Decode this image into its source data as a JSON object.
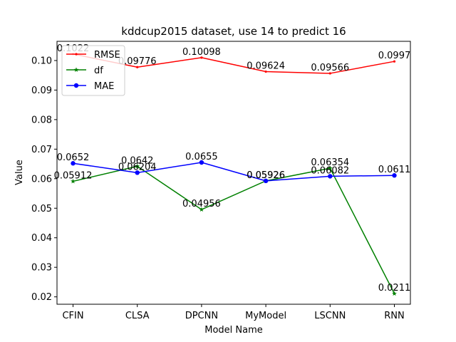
{
  "chart_data": {
    "type": "line",
    "title": "kddcup2015 dataset, use 14 to predict 16",
    "xlabel": "Model Name",
    "ylabel": "Value",
    "categories": [
      "CFIN",
      "CLSA",
      "DPCNN",
      "MyModel",
      "LSCNN",
      "RNN"
    ],
    "ylim": [
      0.0175,
      0.1065
    ],
    "yticks": [
      0.02,
      0.03,
      0.04,
      0.05,
      0.06,
      0.07,
      0.08,
      0.09,
      0.1
    ],
    "ytick_labels": [
      "0.02",
      "0.03",
      "0.04",
      "0.05",
      "0.06",
      "0.07",
      "0.08",
      "0.09",
      "0.10"
    ],
    "grid": false,
    "legend_position": "upper-left",
    "series": [
      {
        "name": "RMSE",
        "color": "#ff0000",
        "marker": "dot",
        "values": [
          0.1022,
          0.09776,
          0.10098,
          0.09624,
          0.09566,
          0.0997
        ],
        "labels": [
          "0.1022",
          "0.09776",
          "0.10098",
          "0.09624",
          "0.09566",
          "0.0997"
        ]
      },
      {
        "name": "df",
        "color": "#008000",
        "marker": "star",
        "values": [
          0.05912,
          0.0642,
          0.04956,
          0.05926,
          0.06354,
          0.0211
        ],
        "labels": [
          "0.05912",
          "0.0642",
          "0.04956",
          "0.05926",
          "0.06354",
          "0.0211"
        ]
      },
      {
        "name": "MAE",
        "color": "#0000ff",
        "marker": "circle",
        "values": [
          0.0652,
          0.06204,
          0.0655,
          0.05926,
          0.06082,
          0.0611
        ],
        "labels": [
          "0.0652",
          "0.06204",
          "0.0655",
          "0.05926",
          "0.06082",
          "0.0611"
        ]
      }
    ]
  }
}
